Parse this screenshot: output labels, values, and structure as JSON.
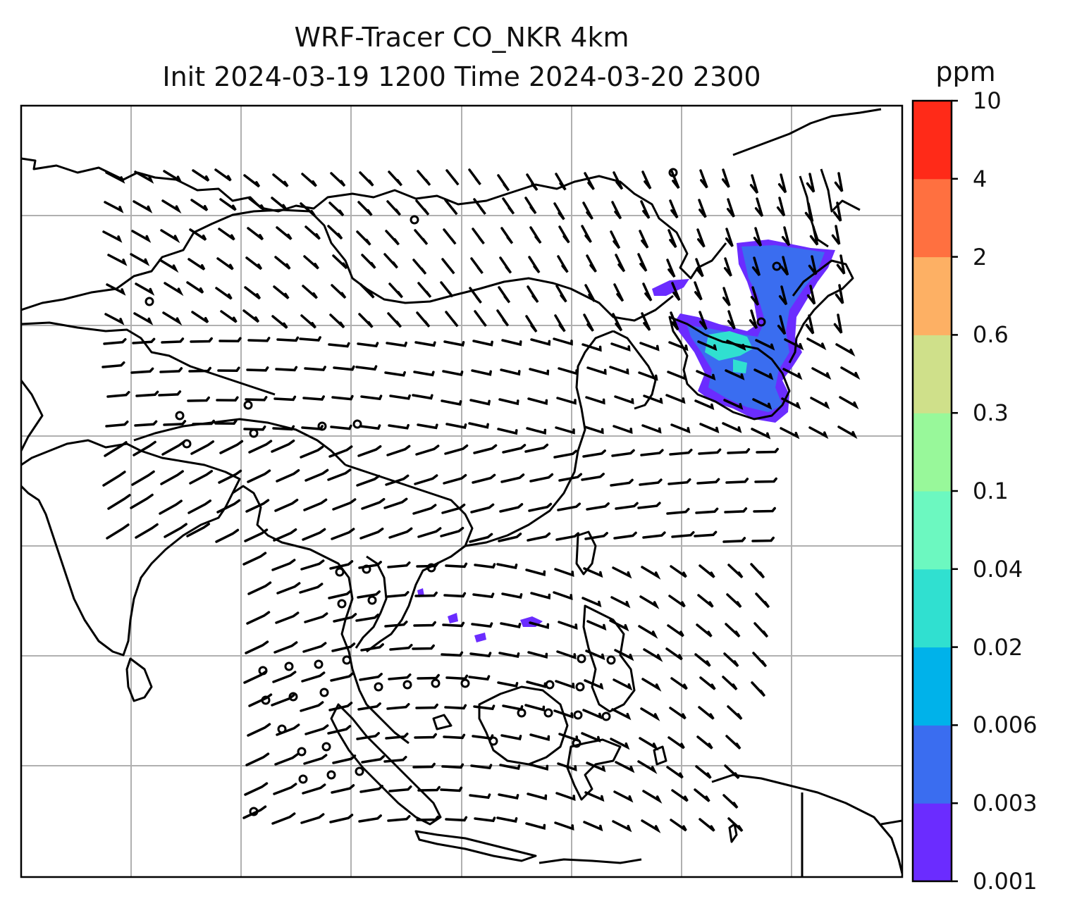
{
  "title": {
    "line1": "WRF-Tracer CO_NKR 4km",
    "line2": "Init 2024-03-19 1200 Time 2024-03-20 2300"
  },
  "colorbar": {
    "unit": "ppm",
    "levels": [
      "0.001",
      "0.003",
      "0.006",
      "0.02",
      "0.04",
      "0.1",
      "0.3",
      "0.6",
      "2",
      "4",
      "10"
    ],
    "colors": [
      "#6b2cff",
      "#3a6df0",
      "#00b2ea",
      "#30e0d0",
      "#6cf8c0",
      "#98f89a",
      "#cfe08a",
      "#fdb064",
      "#ff7040",
      "#ff2a18"
    ]
  },
  "map": {
    "gridlines": true,
    "plume_colors": {
      "outer": "#6b2cff",
      "mid": "#3a6df0",
      "core": "#30e0d0"
    },
    "wind_symbol": "wind-barb",
    "calm_symbol": "calm-circle"
  }
}
